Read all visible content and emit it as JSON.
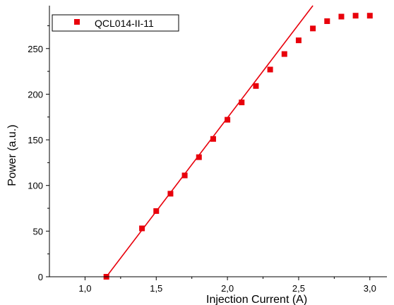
{
  "chart_data": {
    "type": "scatter",
    "title": "",
    "xlabel": "Injection Current (A)",
    "ylabel": "Power  (a.u.)",
    "xlim": [
      0.75,
      3.12
    ],
    "ylim": [
      0,
      297
    ],
    "xticks": [
      1.0,
      1.5,
      2.0,
      2.5,
      3.0
    ],
    "xtick_labels": [
      "1,0",
      "1,5",
      "2,0",
      "2,5",
      "3,0"
    ],
    "yticks": [
      0,
      50,
      100,
      150,
      200,
      250
    ],
    "ytick_labels": [
      "0",
      "50",
      "100",
      "150",
      "200",
      "250"
    ],
    "grid": false,
    "legend_position": "top-left",
    "series": [
      {
        "name": "QCL014-II-11",
        "marker": "square",
        "color": "#e8000b",
        "x": [
          1.15,
          1.4,
          1.5,
          1.6,
          1.7,
          1.8,
          1.9,
          2.0,
          2.1,
          2.2,
          2.3,
          2.4,
          2.5,
          2.6,
          2.7,
          2.8,
          2.9,
          3.0
        ],
        "y": [
          0,
          53,
          72,
          91,
          111,
          131,
          151,
          172,
          191,
          209,
          227,
          244,
          259,
          272,
          280,
          285,
          286,
          286
        ]
      }
    ],
    "fit_line": {
      "color": "#e8000b",
      "x": [
        1.15,
        2.6
      ],
      "y": [
        0,
        297
      ]
    }
  }
}
